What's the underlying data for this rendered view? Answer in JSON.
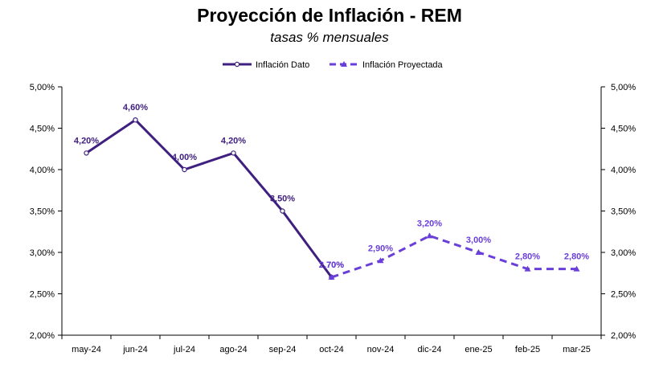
{
  "chart_data": {
    "type": "line",
    "title": "Proyección de Inflación - REM",
    "subtitle": "tasas % mensuales",
    "categories": [
      "may-24",
      "jun-24",
      "jul-24",
      "ago-24",
      "sep-24",
      "oct-24",
      "nov-24",
      "dic-24",
      "ene-25",
      "feb-25",
      "mar-25"
    ],
    "ylim": [
      2.0,
      5.0
    ],
    "yticks": [
      {
        "value": 2.0,
        "label": "2,00%"
      },
      {
        "value": 2.5,
        "label": "2,50%"
      },
      {
        "value": 3.0,
        "label": "3,00%"
      },
      {
        "value": 3.5,
        "label": "3,50%"
      },
      {
        "value": 4.0,
        "label": "4,00%"
      },
      {
        "value": 4.5,
        "label": "4,50%"
      },
      {
        "value": 5.0,
        "label": "5,00%"
      }
    ],
    "secondary_axis": true,
    "grid": false,
    "legend_position": "top-center",
    "series": [
      {
        "name": "Inflación Dato",
        "style": "solid",
        "marker": "circle",
        "color": "#3f1f7f",
        "values": [
          4.2,
          4.6,
          4.0,
          4.2,
          3.5,
          2.7,
          null,
          null,
          null,
          null,
          null
        ],
        "labels": [
          "4,20%",
          "4,60%",
          "4,00%",
          "4,20%",
          "3,50%",
          "2,70%",
          null,
          null,
          null,
          null,
          null
        ]
      },
      {
        "name": "Inflación Proyectada",
        "style": "dashed",
        "marker": "triangle",
        "color": "#6a3fd9",
        "values": [
          null,
          null,
          null,
          null,
          null,
          2.7,
          2.9,
          3.2,
          3.0,
          2.8,
          2.8
        ],
        "labels": [
          null,
          null,
          null,
          null,
          null,
          "2,70%",
          "2,90%",
          "3,20%",
          "3,00%",
          "2,80%",
          "2,80%"
        ]
      }
    ]
  }
}
